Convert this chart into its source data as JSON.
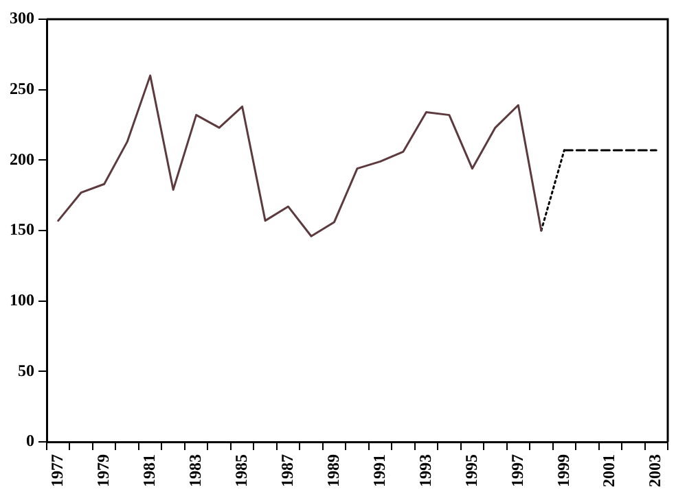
{
  "chart_data": {
    "type": "line",
    "categories": [
      "1977",
      null,
      "1979",
      null,
      "1981",
      null,
      "1983",
      null,
      "1985",
      null,
      "1987",
      null,
      "1989",
      null,
      "1991",
      null,
      "1993",
      null,
      "1995",
      null,
      "1997",
      null,
      "1999",
      null,
      "2001",
      null,
      "2003"
    ],
    "series": [
      {
        "color": "#5c3a3e",
        "line_style": "solid",
        "values": [
          157,
          177,
          183,
          213,
          260,
          179,
          232,
          223,
          238,
          157,
          167,
          146,
          156,
          194,
          199,
          206,
          234,
          232,
          194,
          223,
          239,
          150,
          null,
          null,
          null,
          null,
          null
        ]
      },
      {
        "color": "#000000",
        "line_style": "dotted",
        "values": [
          null,
          null,
          null,
          null,
          null,
          null,
          null,
          null,
          null,
          null,
          null,
          null,
          null,
          null,
          null,
          null,
          null,
          null,
          null,
          null,
          null,
          150,
          207,
          null,
          null,
          null,
          null
        ]
      },
      {
        "color": "#000000",
        "line_style": "dashed",
        "values": [
          null,
          null,
          null,
          null,
          null,
          null,
          null,
          null,
          null,
          null,
          null,
          null,
          null,
          null,
          null,
          null,
          null,
          null,
          null,
          null,
          null,
          null,
          207,
          207,
          207,
          207,
          207
        ]
      }
    ],
    "ylim": [
      0,
      300
    ],
    "yticks": [
      0,
      50,
      100,
      150,
      200,
      250,
      300
    ],
    "grid": false,
    "legend": false,
    "marker": "none"
  }
}
